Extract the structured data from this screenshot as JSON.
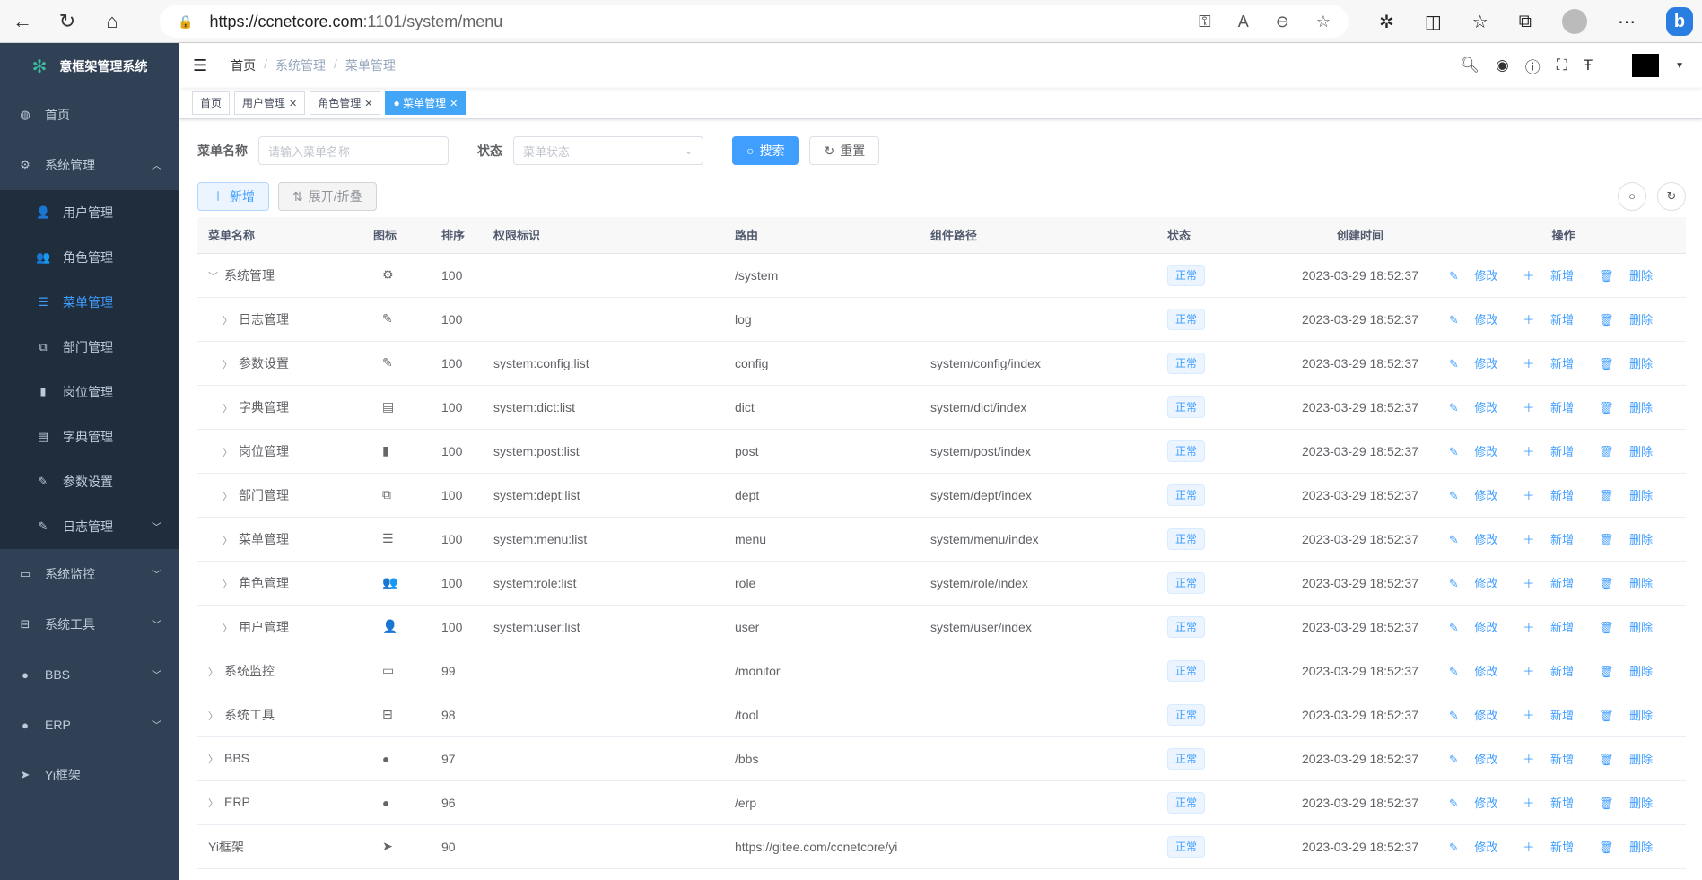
{
  "browser": {
    "url_host": "https://ccnetcore.com",
    "url_rest": ":1101/system/menu"
  },
  "sidebar": {
    "title": "意框架管理系统",
    "items": [
      {
        "label": "首页",
        "icon": "dashboard-icon",
        "glyph": "◍"
      },
      {
        "label": "系统管理",
        "icon": "gear-icon",
        "glyph": "⚙",
        "expanded": true,
        "children": [
          {
            "label": "用户管理",
            "icon": "user-icon",
            "glyph": "👤"
          },
          {
            "label": "角色管理",
            "icon": "peoples-icon",
            "glyph": "👥"
          },
          {
            "label": "菜单管理",
            "icon": "tree-table-icon",
            "glyph": "☰",
            "active": true
          },
          {
            "label": "部门管理",
            "icon": "tree-icon",
            "glyph": "⧉"
          },
          {
            "label": "岗位管理",
            "icon": "post-icon",
            "glyph": "▮"
          },
          {
            "label": "字典管理",
            "icon": "dict-icon",
            "glyph": "▤"
          },
          {
            "label": "参数设置",
            "icon": "edit-icon",
            "glyph": "✎"
          },
          {
            "label": "日志管理",
            "icon": "log-icon",
            "glyph": "✎",
            "arrow": true
          }
        ]
      },
      {
        "label": "系统监控",
        "icon": "monitor-icon",
        "glyph": "▭",
        "arrow": true
      },
      {
        "label": "系统工具",
        "icon": "tool-icon",
        "glyph": "⊟",
        "arrow": true
      },
      {
        "label": "BBS",
        "icon": "globe-icon",
        "glyph": "●",
        "arrow": true
      },
      {
        "label": "ERP",
        "icon": "globe-icon",
        "glyph": "●",
        "arrow": true
      },
      {
        "label": "Yi框架",
        "icon": "send-icon",
        "glyph": "➤"
      }
    ]
  },
  "breadcrumb": [
    "首页",
    "系统管理",
    "菜单管理"
  ],
  "tags": [
    {
      "label": "首页"
    },
    {
      "label": "用户管理",
      "closable": true
    },
    {
      "label": "角色管理",
      "closable": true
    },
    {
      "label": "菜单管理",
      "closable": true,
      "active": true
    }
  ],
  "form": {
    "name_label": "菜单名称",
    "name_placeholder": "请输入菜单名称",
    "status_label": "状态",
    "status_placeholder": "菜单状态",
    "search": "搜索",
    "reset": "重置"
  },
  "toolbar": {
    "add": "新增",
    "expand": "展开/折叠"
  },
  "colors": {
    "primary": "#409eff",
    "sidebar": "#304156",
    "submenu": "#1f2d3d"
  },
  "table": {
    "headers": [
      "菜单名称",
      "图标",
      "排序",
      "权限标识",
      "路由",
      "组件路径",
      "状态",
      "创建时间",
      "操作"
    ],
    "actions": [
      "修改",
      "新增",
      "删除"
    ],
    "rows": [
      {
        "name": "系统管理",
        "level": 0,
        "exp": "open",
        "icon": "⚙",
        "order": "100",
        "perm": "",
        "route": "/system",
        "comp": "",
        "status": "正常",
        "time": "2023-03-29 18:52:37"
      },
      {
        "name": "日志管理",
        "level": 1,
        "exp": "closed",
        "icon": "✎",
        "order": "100",
        "perm": "",
        "route": "log",
        "comp": "",
        "status": "正常",
        "time": "2023-03-29 18:52:37"
      },
      {
        "name": "参数设置",
        "level": 1,
        "exp": "closed",
        "icon": "✎",
        "order": "100",
        "perm": "system:config:list",
        "route": "config",
        "comp": "system/config/index",
        "status": "正常",
        "time": "2023-03-29 18:52:37"
      },
      {
        "name": "字典管理",
        "level": 1,
        "exp": "closed",
        "icon": "▤",
        "order": "100",
        "perm": "system:dict:list",
        "route": "dict",
        "comp": "system/dict/index",
        "status": "正常",
        "time": "2023-03-29 18:52:37"
      },
      {
        "name": "岗位管理",
        "level": 1,
        "exp": "closed",
        "icon": "▮",
        "order": "100",
        "perm": "system:post:list",
        "route": "post",
        "comp": "system/post/index",
        "status": "正常",
        "time": "2023-03-29 18:52:37"
      },
      {
        "name": "部门管理",
        "level": 1,
        "exp": "closed",
        "icon": "⧉",
        "order": "100",
        "perm": "system:dept:list",
        "route": "dept",
        "comp": "system/dept/index",
        "status": "正常",
        "time": "2023-03-29 18:52:37"
      },
      {
        "name": "菜单管理",
        "level": 1,
        "exp": "closed",
        "icon": "☰",
        "order": "100",
        "perm": "system:menu:list",
        "route": "menu",
        "comp": "system/menu/index",
        "status": "正常",
        "time": "2023-03-29 18:52:37"
      },
      {
        "name": "角色管理",
        "level": 1,
        "exp": "closed",
        "icon": "👥",
        "order": "100",
        "perm": "system:role:list",
        "route": "role",
        "comp": "system/role/index",
        "status": "正常",
        "time": "2023-03-29 18:52:37"
      },
      {
        "name": "用户管理",
        "level": 1,
        "exp": "closed",
        "icon": "👤",
        "order": "100",
        "perm": "system:user:list",
        "route": "user",
        "comp": "system/user/index",
        "status": "正常",
        "time": "2023-03-29 18:52:37"
      },
      {
        "name": "系统监控",
        "level": 0,
        "exp": "closed",
        "icon": "▭",
        "order": "99",
        "perm": "",
        "route": "/monitor",
        "comp": "",
        "status": "正常",
        "time": "2023-03-29 18:52:37"
      },
      {
        "name": "系统工具",
        "level": 0,
        "exp": "closed",
        "icon": "⊟",
        "order": "98",
        "perm": "",
        "route": "/tool",
        "comp": "",
        "status": "正常",
        "time": "2023-03-29 18:52:37"
      },
      {
        "name": "BBS",
        "level": 0,
        "exp": "closed",
        "icon": "●",
        "order": "97",
        "perm": "",
        "route": "/bbs",
        "comp": "",
        "status": "正常",
        "time": "2023-03-29 18:52:37"
      },
      {
        "name": "ERP",
        "level": 0,
        "exp": "closed",
        "icon": "●",
        "order": "96",
        "perm": "",
        "route": "/erp",
        "comp": "",
        "status": "正常",
        "time": "2023-03-29 18:52:37"
      },
      {
        "name": "Yi框架",
        "level": 0,
        "exp": "none",
        "icon": "➤",
        "order": "90",
        "perm": "",
        "route": "https://gitee.com/ccnetcore/yi",
        "comp": "",
        "status": "正常",
        "time": "2023-03-29 18:52:37"
      }
    ]
  }
}
